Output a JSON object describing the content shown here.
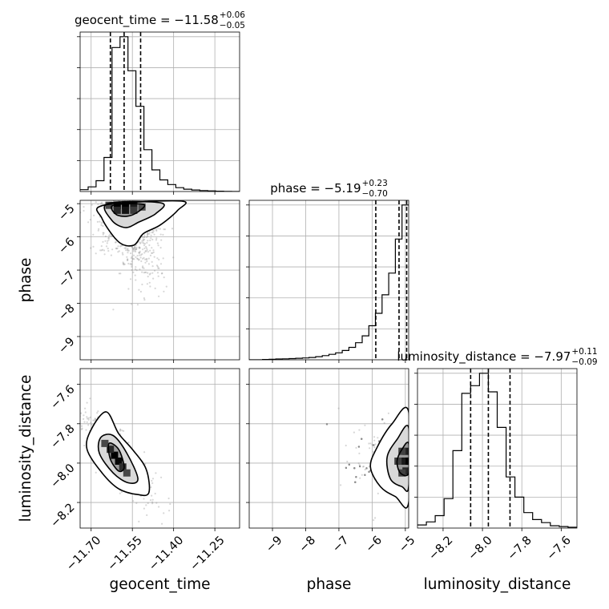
{
  "chart_data": {
    "type": "corner",
    "parameters": [
      {
        "name": "geocent_time",
        "range": [
          -11.74,
          -11.16
        ],
        "ticks": [
          -11.7,
          -11.55,
          -11.4,
          -11.25
        ],
        "tick_labels": [
          "−11.70",
          "−11.55",
          "−11.40",
          "−11.25"
        ],
        "median": -11.58,
        "q_low": -11.63,
        "q_high": -11.52,
        "title_main": "geocent_time = −11.58",
        "title_sup": "+0.06",
        "title_sub": "−0.05",
        "hist": [
          0.012,
          0.03,
          0.07,
          0.22,
          0.93,
          1.0,
          0.78,
          0.55,
          0.27,
          0.14,
          0.075,
          0.045,
          0.025,
          0.015,
          0.01,
          0.006,
          0.004,
          0.002,
          0.001,
          0.0
        ]
      },
      {
        "name": "phase",
        "range": [
          -9.7,
          -4.9
        ],
        "ticks": [
          -9,
          -8,
          -7,
          -6,
          -5
        ],
        "tick_labels": [
          "−9",
          "−8",
          "−7",
          "−6",
          "−5"
        ],
        "median": -5.19,
        "q_low": -5.89,
        "q_high": -4.96,
        "title_main": "phase = −5.19",
        "title_sup": "+0.23",
        "title_sub": "−0.70",
        "hist": [
          0.0,
          0.0,
          0.002,
          0.003,
          0.005,
          0.006,
          0.008,
          0.01,
          0.012,
          0.015,
          0.02,
          0.027,
          0.035,
          0.045,
          0.06,
          0.08,
          0.11,
          0.155,
          0.22,
          0.3,
          0.42,
          0.56,
          0.78,
          1.0
        ]
      },
      {
        "name": "luminosity_distance",
        "range": [
          -8.33,
          -7.52
        ],
        "ticks": [
          -8.2,
          -8.0,
          -7.8,
          -7.6
        ],
        "tick_labels": [
          "−8.2",
          "−8.0",
          "−7.8",
          "−7.6"
        ],
        "median": -7.97,
        "q_low": -8.06,
        "q_high": -7.86,
        "title_main": "luminosity_distance = −7.97",
        "title_sup": "+0.11",
        "title_sub": "−0.09",
        "hist": [
          0.02,
          0.04,
          0.08,
          0.19,
          0.5,
          0.87,
          0.92,
          1.0,
          0.88,
          0.65,
          0.33,
          0.2,
          0.1,
          0.055,
          0.035,
          0.015,
          0.01,
          0.005
        ]
      }
    ],
    "hist_y_ticks": 5,
    "contours": {
      "geocent_time__phase": {
        "rings": [
          {
            "level": "outer",
            "points": [
              [
                -11.655,
                -5.05
              ],
              [
                -11.66,
                -5.45
              ],
              [
                -11.6,
                -6.15
              ],
              [
                -11.545,
                -6.25
              ],
              [
                -11.51,
                -5.9
              ],
              [
                -11.45,
                -5.65
              ],
              [
                -11.385,
                -5.2
              ],
              [
                -11.375,
                -4.92
              ]
            ]
          },
          {
            "level": "middle",
            "points": [
              [
                -11.64,
                -5.0
              ],
              [
                -11.625,
                -5.5
              ],
              [
                -11.575,
                -5.72
              ],
              [
                -11.525,
                -5.55
              ],
              [
                -11.465,
                -5.3
              ],
              [
                -11.445,
                -4.98
              ]
            ]
          },
          {
            "level": "inner",
            "points": [
              [
                -11.62,
                -5.05
              ],
              [
                -11.61,
                -5.32
              ],
              [
                -11.57,
                -5.38
              ],
              [
                -11.53,
                -5.25
              ],
              [
                -11.51,
                -5.02
              ]
            ]
          }
        ],
        "cores": [
          [
            -11.605,
            -5.05,
            1.0
          ],
          [
            -11.575,
            -5.05,
            1.0
          ],
          [
            -11.575,
            -5.2,
            0.85
          ],
          [
            -11.605,
            -5.2,
            0.7
          ],
          [
            -11.545,
            -5.05,
            0.8
          ],
          [
            -11.545,
            -5.2,
            0.55
          ],
          [
            -11.635,
            -5.05,
            0.45
          ],
          [
            -11.515,
            -5.1,
            0.4
          ]
        ],
        "cloud": {
          "center": [
            -11.57,
            -5.5
          ],
          "spread": [
            0.06,
            0.9
          ],
          "corr": -0.45,
          "n": 900,
          "seed": 11
        }
      },
      "geocent_time__luminosity_distance": {
        "rings": [
          {
            "level": "outer",
            "points": [
              [
                -11.7,
                -7.83
              ],
              [
                -11.645,
                -7.74
              ],
              [
                -11.6,
                -7.85
              ],
              [
                -11.55,
                -7.93
              ],
              [
                -11.5,
                -8.03
              ],
              [
                -11.49,
                -8.15
              ],
              [
                -11.53,
                -8.16
              ],
              [
                -11.6,
                -8.13
              ],
              [
                -11.66,
                -8.05
              ],
              [
                -11.715,
                -7.93
              ]
            ]
          },
          {
            "level": "middle",
            "points": [
              [
                -11.665,
                -7.87
              ],
              [
                -11.62,
                -7.86
              ],
              [
                -11.57,
                -7.95
              ],
              [
                -11.53,
                -8.08
              ],
              [
                -11.565,
                -8.1
              ],
              [
                -11.62,
                -8.05
              ],
              [
                -11.67,
                -7.95
              ]
            ]
          },
          {
            "level": "inner",
            "points": [
              [
                -11.635,
                -7.9
              ],
              [
                -11.6,
                -7.93
              ],
              [
                -11.58,
                -8.02
              ],
              [
                -11.6,
                -8.04
              ],
              [
                -11.63,
                -7.98
              ]
            ]
          }
        ],
        "cores": [
          [
            -11.615,
            -7.96,
            1.0
          ],
          [
            -11.6,
            -7.99,
            0.95
          ],
          [
            -11.63,
            -7.93,
            0.7
          ],
          [
            -11.585,
            -8.02,
            0.65
          ],
          [
            -11.65,
            -7.9,
            0.45
          ],
          [
            -11.57,
            -8.05,
            0.45
          ]
        ],
        "cloud": {
          "center": [
            -11.6,
            -7.97
          ],
          "spread": [
            0.055,
            0.1
          ],
          "corr": -0.8,
          "n": 900,
          "seed": 23
        }
      },
      "phase__luminosity_distance": {
        "rings": [
          {
            "level": "outer",
            "points": [
              [
                -4.9,
                -7.74
              ],
              [
                -5.4,
                -7.8
              ],
              [
                -5.85,
                -7.92
              ],
              [
                -6.05,
                -8.02
              ],
              [
                -5.75,
                -8.12
              ],
              [
                -5.3,
                -8.17
              ],
              [
                -4.9,
                -8.2
              ]
            ]
          },
          {
            "level": "middle",
            "points": [
              [
                -4.9,
                -7.82
              ],
              [
                -5.25,
                -7.88
              ],
              [
                -5.55,
                -7.97
              ],
              [
                -5.45,
                -8.08
              ],
              [
                -5.1,
                -8.12
              ],
              [
                -4.9,
                -8.12
              ]
            ]
          },
          {
            "level": "inner",
            "points": [
              [
                -4.9,
                -7.9
              ],
              [
                -5.1,
                -7.93
              ],
              [
                -5.25,
                -7.99
              ],
              [
                -5.15,
                -8.05
              ],
              [
                -4.9,
                -8.05
              ]
            ]
          }
        ],
        "cores": [
          [
            -4.98,
            -7.99,
            1.0
          ],
          [
            -5.1,
            -7.99,
            0.8
          ],
          [
            -4.98,
            -7.94,
            0.75
          ],
          [
            -4.98,
            -8.04,
            0.7
          ],
          [
            -5.22,
            -7.99,
            0.5
          ],
          [
            -5.1,
            -8.05,
            0.5
          ],
          [
            -5.1,
            -7.94,
            0.5
          ]
        ],
        "cloud": {
          "center": [
            -5.25,
            -7.97
          ],
          "spread": [
            0.9,
            0.1
          ],
          "corr": 0.0,
          "n": 900,
          "seed": 37
        }
      }
    }
  }
}
